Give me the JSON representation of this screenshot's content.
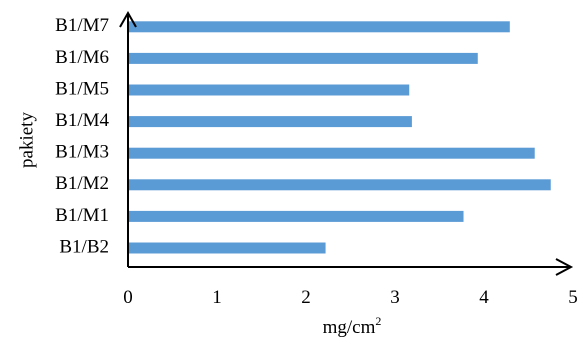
{
  "chart_data": {
    "type": "bar",
    "orientation": "horizontal",
    "categories": [
      "B1/B2",
      "B1/M1",
      "B1/M2",
      "B1/M3",
      "B1/M4",
      "B1/M5",
      "B1/M6",
      "B1/M7"
    ],
    "series": [
      {
        "values": [
          2.22,
          3.77,
          4.75,
          4.57,
          3.19,
          3.16,
          3.93,
          4.29
        ]
      }
    ],
    "xlabel_main": "mg/cm",
    "xlabel_sup": "2",
    "ylabel": "pakiety",
    "xlim": [
      0,
      5
    ],
    "xticks": [
      "0",
      "1",
      "2",
      "3",
      "4",
      "5"
    ],
    "grid": false,
    "bar_color": "#5b9bd5",
    "axis_color": "#000000"
  }
}
